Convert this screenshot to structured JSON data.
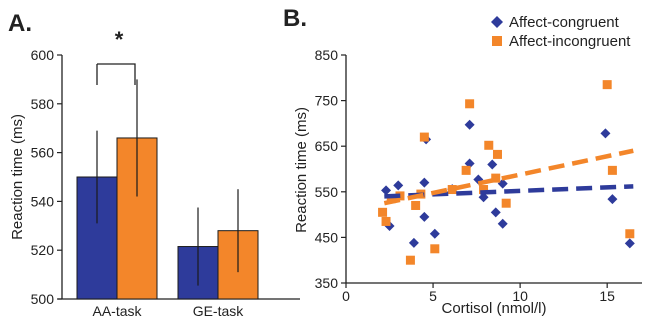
{
  "chart_data": [
    {
      "panel_label": "A.",
      "type": "bar",
      "categories": [
        "AA-task",
        "GE-task"
      ],
      "series": [
        {
          "color": "#2e3b9b",
          "values": [
            550,
            521.5
          ],
          "error": [
            19,
            16
          ]
        },
        {
          "color": "#f3862a",
          "values": [
            566,
            528
          ],
          "error": [
            24,
            17
          ]
        }
      ],
      "ylabel": "Reaction time (ms)",
      "ylim": [
        500,
        600
      ],
      "yticks": [
        500,
        520,
        540,
        560,
        580,
        600
      ],
      "annotation": "*",
      "grid": false
    },
    {
      "panel_label": "B.",
      "type": "scatter",
      "xlabel": "Cortisol (nmol/l)",
      "ylabel": "Reaction time (ms)",
      "xlim": [
        0,
        17
      ],
      "ylim": [
        350,
        850
      ],
      "xticks": [
        0,
        5,
        10,
        15
      ],
      "yticks": [
        350,
        450,
        550,
        650,
        750,
        850
      ],
      "legend_position": "top-right",
      "grid": false,
      "series": [
        {
          "name": "Affect-congruent",
          "color": "#2e3b9b",
          "marker": "diamond",
          "points": [
            [
              2.3,
              553
            ],
            [
              2.5,
              475
            ],
            [
              3.0,
              564
            ],
            [
              3.9,
              438
            ],
            [
              4.5,
              495
            ],
            [
              4.5,
              570
            ],
            [
              4.6,
              665
            ],
            [
              5.1,
              458
            ],
            [
              6.1,
              556
            ],
            [
              7.1,
              697
            ],
            [
              7.1,
              612
            ],
            [
              7.6,
              577
            ],
            [
              7.9,
              538
            ],
            [
              8.4,
              610
            ],
            [
              8.6,
              505
            ],
            [
              9.0,
              568
            ],
            [
              9.0,
              480
            ],
            [
              14.9,
              678
            ],
            [
              15.3,
              534
            ],
            [
              16.3,
              437
            ]
          ],
          "trend": [
            [
              2.2,
              540
            ],
            [
              16.5,
              562
            ]
          ]
        },
        {
          "name": "Affect-incongruent",
          "color": "#f3862a",
          "marker": "square",
          "points": [
            [
              2.1,
              505
            ],
            [
              2.3,
              485
            ],
            [
              2.6,
              535
            ],
            [
              3.1,
              541
            ],
            [
              3.7,
              400
            ],
            [
              4.0,
              520
            ],
            [
              4.3,
              545
            ],
            [
              4.5,
              670
            ],
            [
              5.1,
              425
            ],
            [
              6.1,
              555
            ],
            [
              6.9,
              597
            ],
            [
              7.1,
              743
            ],
            [
              7.9,
              555
            ],
            [
              8.2,
              652
            ],
            [
              8.6,
              580
            ],
            [
              8.7,
              632
            ],
            [
              9.2,
              525
            ],
            [
              15.0,
              785
            ],
            [
              15.3,
              597
            ],
            [
              16.3,
              458
            ]
          ],
          "trend": [
            [
              2.2,
              525
            ],
            [
              16.5,
              640
            ]
          ]
        }
      ]
    }
  ]
}
